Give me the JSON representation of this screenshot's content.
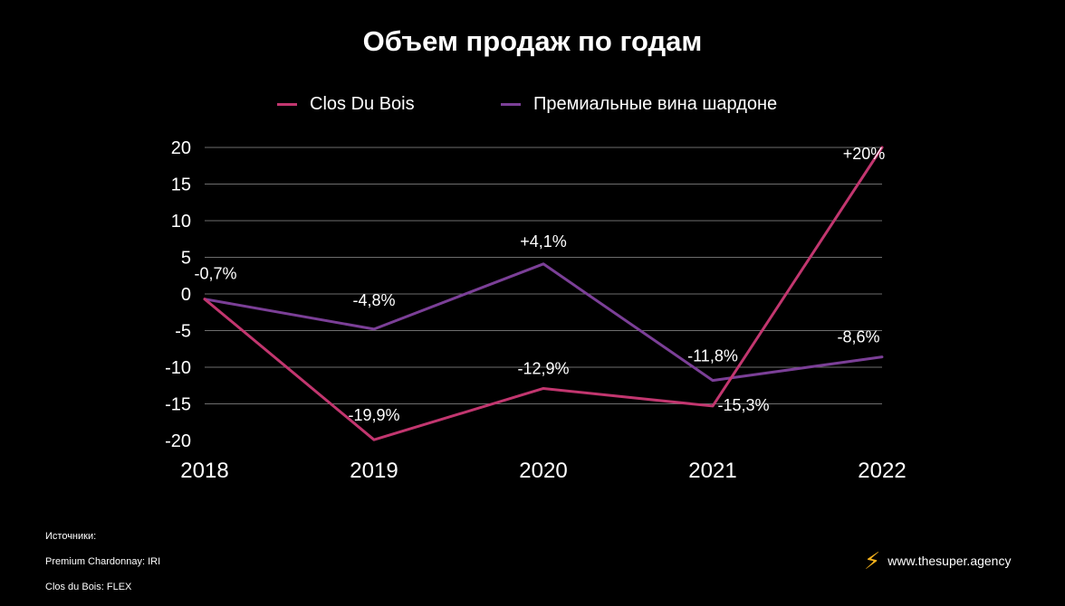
{
  "chart_data": {
    "type": "line",
    "title": "Объем продаж по годам",
    "categories": [
      "2018",
      "2019",
      "2020",
      "2021",
      "2022"
    ],
    "ylim": [
      -20,
      20
    ],
    "yticks": [
      "20",
      "15",
      "10",
      "5",
      "0",
      "-5",
      "-10",
      "-15",
      "-20"
    ],
    "ytick_values": [
      20,
      15,
      10,
      5,
      0,
      -5,
      -10,
      -15,
      -20
    ],
    "grid": true,
    "legend_position": "top-center",
    "series": [
      {
        "name": "Clos Du Bois",
        "color": "#c2366f",
        "values": [
          -0.7,
          -19.9,
          -12.9,
          -15.3,
          20
        ],
        "labels": [
          "-0,7%",
          "-19,9%",
          "-12,9%",
          "-15,3%",
          "+20%"
        ]
      },
      {
        "name": "Премиальные вина шардоне",
        "color": "#7b3f97",
        "values": [
          -0.7,
          -4.8,
          4.1,
          -11.8,
          -8.6
        ],
        "labels": [
          "",
          "-4,8%",
          "+4,1%",
          "-11,8%",
          "-8,6%"
        ]
      }
    ]
  },
  "footer": {
    "sources_title": "Источники:",
    "source_1": "Premium Chardonnay: IRI",
    "source_2": "Clos du Bois: FLEX",
    "brand_icon": "lightning-icon",
    "brand_text": "www.thesuper.agency"
  }
}
